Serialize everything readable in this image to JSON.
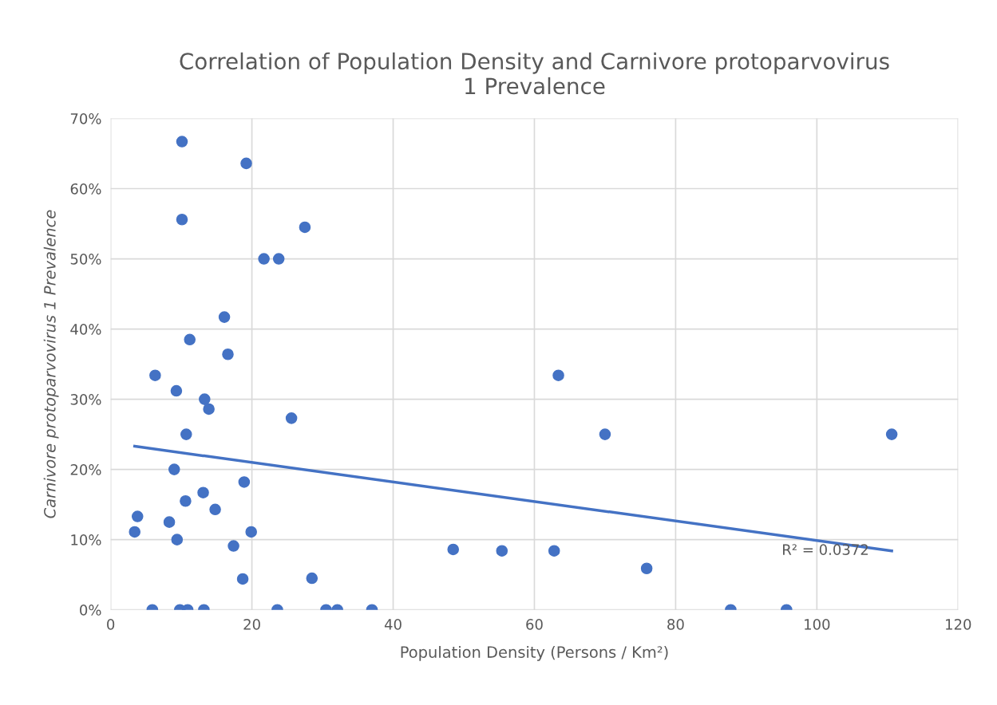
{
  "chart_data": {
    "type": "scatter",
    "title": "Correlation of Population Density and Carnivore protoparvovirus\n1 Prevalence",
    "xlabel": "Population Density (Persons / Km²)",
    "ylabel": "Carnivore protoparvovirus 1 Prevalence",
    "xlim": [
      0,
      120
    ],
    "xticks": [
      0,
      20,
      40,
      60,
      80,
      100,
      120
    ],
    "ylim": [
      0,
      70
    ],
    "yticks": [
      {
        "value": 0,
        "label": "0%"
      },
      {
        "value": 10,
        "label": "10%"
      },
      {
        "value": 20,
        "label": "20%"
      },
      {
        "value": 30,
        "label": "30%"
      },
      {
        "value": 40,
        "label": "40%"
      },
      {
        "value": 50,
        "label": "50%"
      },
      {
        "value": 60,
        "label": "60%"
      },
      {
        "value": 70,
        "label": "70%"
      }
    ],
    "grid": true,
    "marker": "circle",
    "annotations": [
      "R² = 0.0372"
    ],
    "series": [
      {
        "color": "#4472c4",
        "x": [
          10.1,
          19.2,
          10.1,
          27.5,
          21.7,
          23.8,
          16.1,
          11.2,
          16.6,
          6.3,
          63.4,
          9.3,
          13.3,
          13.9,
          25.6,
          10.7,
          70.0,
          110.6,
          9.0,
          18.9,
          13.1,
          10.6,
          14.8,
          3.8,
          8.3,
          3.4,
          19.9,
          9.4,
          17.4,
          48.5,
          55.4,
          62.8,
          75.9,
          18.7,
          28.5,
          5.9,
          9.8,
          10.9,
          13.2,
          23.6,
          30.5,
          32.1,
          37.0,
          87.8,
          95.7
        ],
        "values": [
          66.7,
          63.6,
          55.6,
          54.5,
          50,
          50,
          41.7,
          38.5,
          36.4,
          33.4,
          33.4,
          31.2,
          30,
          28.6,
          27.3,
          25,
          25,
          25,
          20,
          18.2,
          16.7,
          15.5,
          14.3,
          13.3,
          12.5,
          11.1,
          11.1,
          10,
          9.1,
          8.6,
          8.4,
          8.4,
          5.9,
          4.4,
          4.5,
          0,
          0,
          0,
          0,
          0,
          0,
          0,
          0,
          0,
          0
        ]
      },
      {
        "type": "line",
        "marker": "none",
        "color": "#4472c4",
        "x": [
          3.4,
          110.6
        ],
        "values": [
          23.3,
          8.4
        ]
      }
    ]
  }
}
